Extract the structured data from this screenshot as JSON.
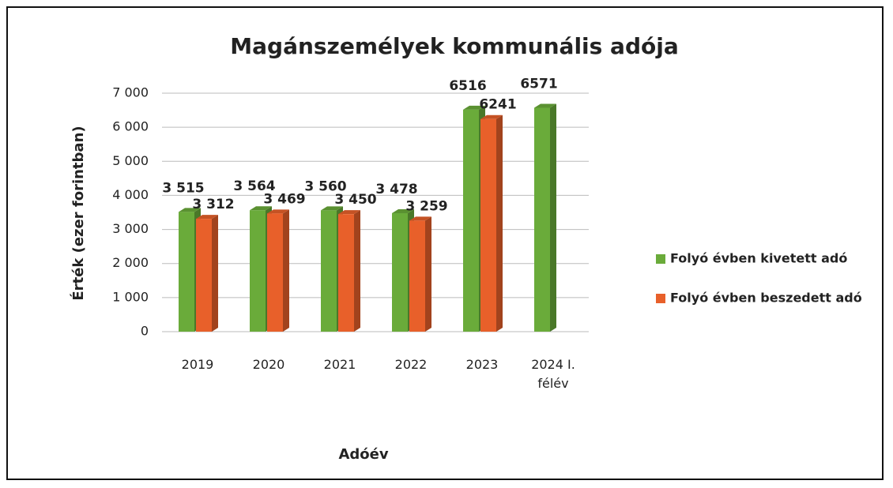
{
  "chart_data": {
    "type": "bar",
    "title": "Magánszemélyek kommunális adója",
    "y_label": "Érték (ezer forintban)",
    "x_label": "Adóév",
    "categories": [
      "2019",
      "2020",
      "2021",
      "2022",
      "2023",
      "2024 I. félév"
    ],
    "series": [
      {
        "name": "Folyó évben kivetett adó",
        "color": "#6aab3a",
        "values": [
          3515,
          3564,
          3560,
          3478,
          6516,
          6571
        ],
        "value_labels": [
          "3 515",
          "3 564",
          "3 560",
          "3 478",
          "6516",
          "6571"
        ]
      },
      {
        "name": "Folyó évben beszedett adó",
        "color": "#e8602a",
        "values": [
          3312,
          3469,
          3450,
          3259,
          6241,
          null
        ],
        "value_labels": [
          "3 312",
          "3 469",
          "3 450",
          "3 259",
          "6241",
          null
        ]
      }
    ],
    "ylim": [
      0,
      7000
    ],
    "yticks": [
      0,
      {
        "value": 1000,
        "label": "1 000"
      },
      {
        "value": 2000,
        "label": "2 000"
      },
      {
        "value": 3000,
        "label": "3 000"
      },
      {
        "value": 4000,
        "label": "4 000"
      },
      {
        "value": 5000,
        "label": "5 000"
      },
      {
        "value": 6000,
        "label": "6 000"
      },
      {
        "value": 7000,
        "label": "7 000"
      }
    ],
    "grid": true,
    "legend": "right"
  }
}
